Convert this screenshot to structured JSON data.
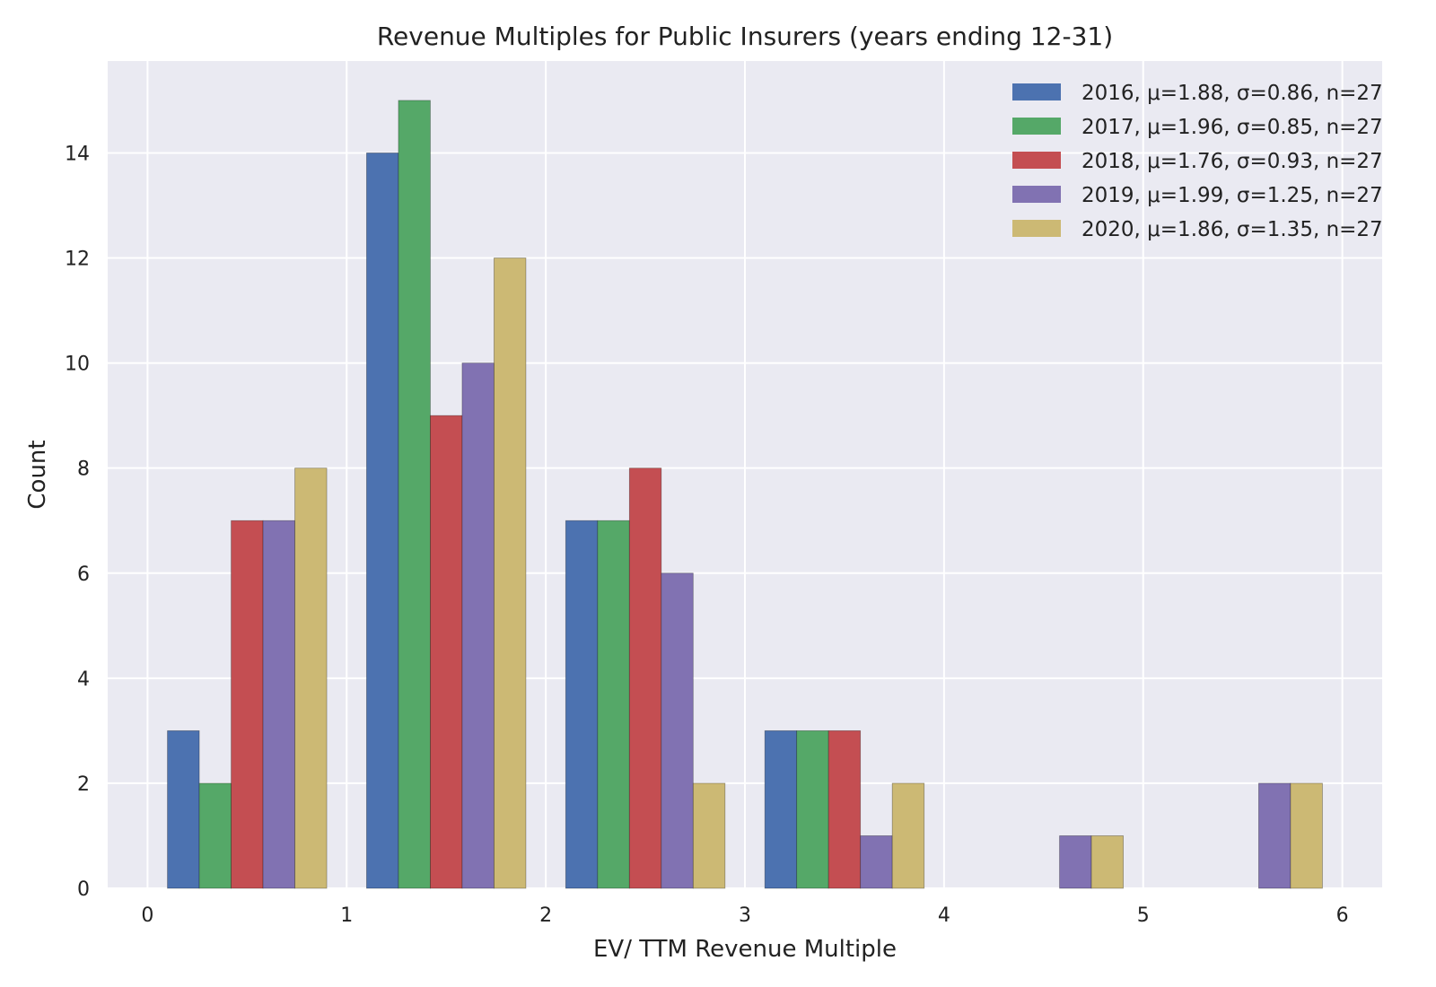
{
  "chart_data": {
    "type": "bar",
    "title": "Revenue Multiples for Public Insurers (years ending 12-31)",
    "xlabel": "EV/ TTM Revenue Multiple",
    "ylabel": "Count",
    "xlim": [
      -0.2,
      6.2
    ],
    "ylim": [
      0,
      15.75
    ],
    "xticks": [
      0,
      1,
      2,
      3,
      4,
      5,
      6
    ],
    "yticks": [
      0,
      2,
      4,
      6,
      8,
      10,
      12,
      14
    ],
    "bins": [
      [
        0.1,
        0.9
      ],
      [
        1.1,
        1.9
      ],
      [
        2.1,
        2.9
      ],
      [
        3.1,
        3.9
      ],
      [
        4.1,
        4.9
      ],
      [
        5.1,
        5.9
      ]
    ],
    "grid": true,
    "legend_position": "top-right",
    "background": "#eaeaf2",
    "series": [
      {
        "name": "2016, μ=1.88, σ=0.86, n=27",
        "color": "#4c72b0",
        "values": [
          3,
          14,
          7,
          3,
          0,
          0
        ]
      },
      {
        "name": "2017, μ=1.96, σ=0.85, n=27",
        "color": "#55a868",
        "values": [
          2,
          15,
          7,
          3,
          0,
          0
        ]
      },
      {
        "name": "2018, μ=1.76, σ=0.93, n=27",
        "color": "#c44e52",
        "values": [
          7,
          9,
          8,
          3,
          0,
          0
        ]
      },
      {
        "name": "2019, μ=1.99, σ=1.25, n=27",
        "color": "#8172b2",
        "values": [
          7,
          10,
          6,
          1,
          1,
          2
        ]
      },
      {
        "name": "2020, μ=1.86, σ=1.35, n=27",
        "color": "#ccb974",
        "values": [
          8,
          12,
          2,
          2,
          1,
          2
        ]
      }
    ]
  }
}
